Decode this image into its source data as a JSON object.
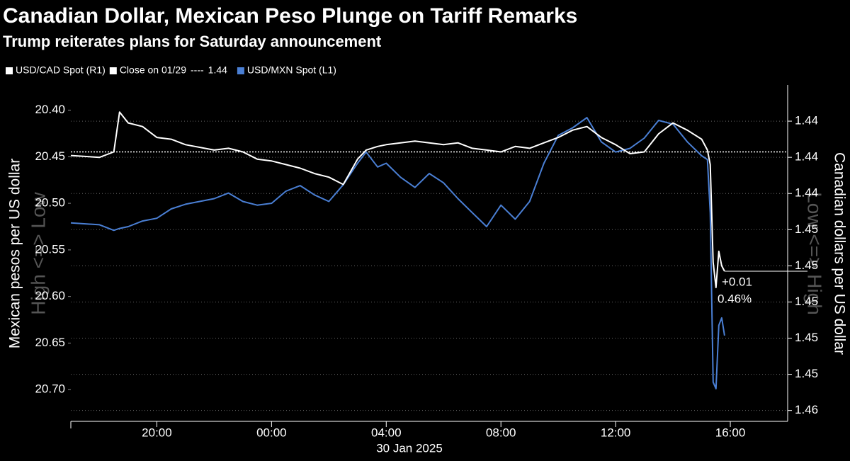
{
  "chart_data": {
    "type": "line",
    "title": "Canadian Dollar, Mexican Peso Plunge on Tariff Remarks",
    "subtitle": "Trump reiterates plans for Saturday announcement",
    "ylabel": "Mexican pesos per US dollar",
    "y2label": "Canadian dollars per US dollar",
    "y_direction_label": "High <=> Low",
    "y2_direction_label": "Low <=> High",
    "xlabel": "30 Jan 2025",
    "x": [
      -7,
      -6,
      -5.5,
      -5.3,
      -5,
      -4.5,
      -4,
      -3.5,
      -3,
      -2,
      -1.5,
      -1,
      -0.5,
      0,
      0.5,
      1,
      1.5,
      2,
      2.5,
      3,
      3.3,
      3.7,
      4,
      4.5,
      5,
      5.5,
      6,
      6.5,
      7,
      7.5,
      8,
      8.5,
      9,
      9.5,
      10,
      10.5,
      11,
      11.5,
      12,
      12.5,
      13,
      13.5,
      14,
      14.5,
      15,
      15.2,
      15.3,
      15.4,
      15.5,
      15.6,
      15.7,
      15.8
    ],
    "xlim": [
      -7,
      18
    ],
    "xticks": [
      {
        "value": -4,
        "label": "20:00"
      },
      {
        "value": 0,
        "label": "00:00"
      },
      {
        "value": 4,
        "label": "04:00"
      },
      {
        "value": 8,
        "label": "08:00"
      },
      {
        "value": 12,
        "label": "12:00"
      },
      {
        "value": 16,
        "label": "16:00"
      }
    ],
    "ylim": [
      20.373,
      20.734
    ],
    "y_inverted": true,
    "yticks": [
      {
        "value": 20.4,
        "label": "20.40"
      },
      {
        "value": 20.45,
        "label": "20.45"
      },
      {
        "value": 20.5,
        "label": "20.50"
      },
      {
        "value": 20.55,
        "label": "20.55"
      },
      {
        "value": 20.6,
        "label": "20.60"
      },
      {
        "value": 20.65,
        "label": "20.65"
      },
      {
        "value": 20.7,
        "label": "20.70"
      }
    ],
    "y2lim": [
      1.438,
      1.4566
    ],
    "y2_inverted": true,
    "y2ticks": [
      {
        "value": 1.44,
        "label": "1.44"
      },
      {
        "value": 1.442,
        "label": "1.44"
      },
      {
        "value": 1.444,
        "label": "1.44"
      },
      {
        "value": 1.446,
        "label": "1.45"
      },
      {
        "value": 1.448,
        "label": "1.45"
      },
      {
        "value": 1.45,
        "label": "1.45"
      },
      {
        "value": 1.452,
        "label": "1.45"
      },
      {
        "value": 1.454,
        "label": "1.45"
      },
      {
        "value": 1.456,
        "label": "1.46"
      }
    ],
    "grid": true,
    "series": [
      {
        "name": "USD/CAD Spot (R1)",
        "color": "#ffffff",
        "axis": "y2",
        "values": [
          1.4419,
          1.442,
          1.4417,
          1.4395,
          1.4401,
          1.4403,
          1.4409,
          1.441,
          1.4413,
          1.4416,
          1.4415,
          1.4417,
          1.4421,
          1.4422,
          1.4424,
          1.4426,
          1.4429,
          1.4431,
          1.4435,
          1.4421,
          1.4416,
          1.4414,
          1.4413,
          1.4412,
          1.4411,
          1.4412,
          1.4413,
          1.4412,
          1.4415,
          1.4416,
          1.4417,
          1.4414,
          1.4415,
          1.4412,
          1.4409,
          1.4405,
          1.4403,
          1.4409,
          1.4413,
          1.4418,
          1.4417,
          1.4407,
          1.4401,
          1.4405,
          1.441,
          1.4416,
          1.4424,
          1.4478,
          1.4492,
          1.4472,
          1.448,
          1.4483
        ]
      },
      {
        "name": "USD/MXN Spot (L1)",
        "color": "#4a7fd4",
        "axis": "y",
        "values": [
          20.521,
          20.523,
          20.529,
          20.527,
          20.525,
          20.519,
          20.516,
          20.506,
          20.501,
          20.495,
          20.489,
          20.498,
          20.502,
          20.5,
          20.487,
          20.481,
          20.491,
          20.498,
          20.48,
          20.457,
          20.445,
          20.461,
          20.457,
          20.472,
          20.483,
          20.468,
          20.478,
          20.495,
          20.51,
          20.525,
          20.502,
          20.517,
          20.498,
          20.457,
          20.427,
          20.419,
          20.408,
          20.434,
          20.445,
          20.441,
          20.43,
          20.411,
          20.415,
          20.434,
          20.449,
          20.453,
          20.51,
          20.692,
          20.699,
          20.631,
          20.623,
          20.642
        ]
      }
    ],
    "reference_line": {
      "name": "Close on 01/29",
      "separator": "----",
      "value": 1.4417,
      "value_label": "1.44",
      "axis": "y2",
      "color": "#ffffff"
    },
    "annotation": {
      "change": 0.0066,
      "change_label": "+0.01",
      "pct": 0.46,
      "pct_label": "0.46%"
    }
  }
}
